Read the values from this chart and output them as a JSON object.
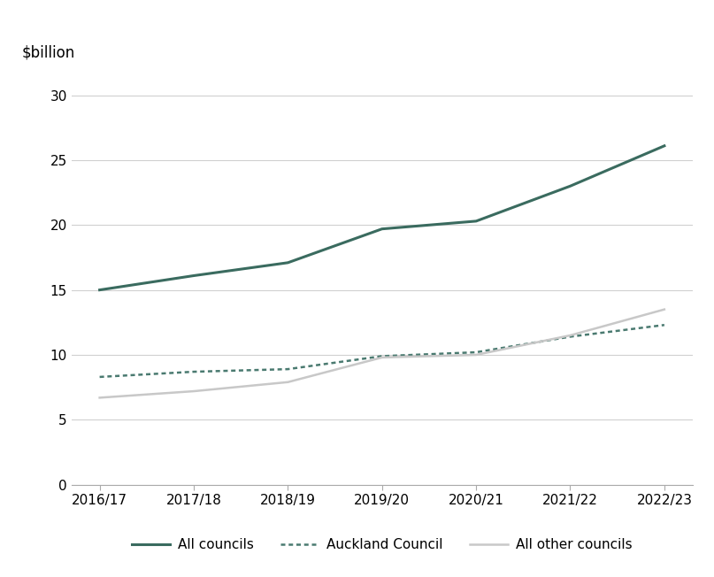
{
  "x_labels": [
    "2016/17",
    "2017/18",
    "2018/19",
    "2019/20",
    "2020/21",
    "2021/22",
    "2022/23"
  ],
  "all_councils": [
    15.0,
    16.1,
    17.1,
    19.7,
    20.3,
    23.0,
    26.1
  ],
  "auckland_council": [
    8.3,
    8.7,
    8.9,
    9.9,
    10.2,
    11.4,
    12.3
  ],
  "all_other_councils": [
    6.7,
    7.2,
    7.9,
    9.8,
    10.0,
    11.5,
    13.5
  ],
  "all_councils_color": "#3a6b5f",
  "auckland_council_color": "#4a7a70",
  "all_other_councils_color": "#c8c8c8",
  "background_color": "#ffffff",
  "ylabel": "$billion",
  "ylim": [
    0,
    32
  ],
  "yticks": [
    0,
    5,
    10,
    15,
    20,
    25,
    30
  ],
  "legend_labels": [
    "All councils",
    "Auckland Council",
    "All other councils"
  ],
  "axis_fontsize": 11,
  "legend_fontsize": 11,
  "ylabel_fontsize": 12,
  "all_councils_lw": 2.2,
  "auckland_lw": 1.8,
  "other_lw": 1.8
}
